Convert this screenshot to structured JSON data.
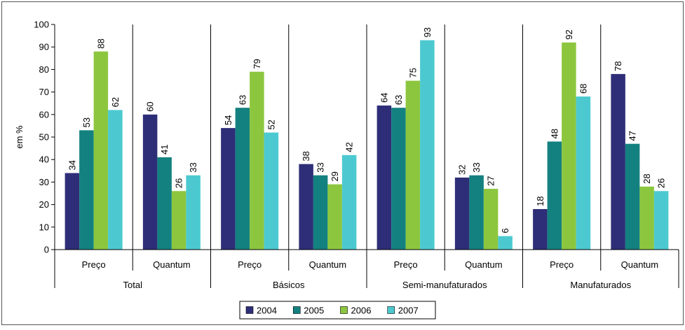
{
  "chart_data": {
    "type": "bar",
    "ylabel": "em %",
    "ylim": [
      0,
      100
    ],
    "yticks": [
      "0",
      "10",
      "20",
      "30",
      "40",
      "50",
      "60",
      "70",
      "80",
      "90",
      "100"
    ],
    "groups": [
      "Total",
      "Básicos",
      "Semi-manufaturados",
      "Manufaturados"
    ],
    "subcategories": [
      "Preço",
      "Quantum"
    ],
    "categories": [
      "Total - Preço",
      "Total - Quantum",
      "Básicos - Preço",
      "Básicos - Quantum",
      "Semi-manufaturados - Preço",
      "Semi-manufaturados - Quantum",
      "Manufaturados - Preço",
      "Manufaturados - Quantum"
    ],
    "series": [
      {
        "name": "2004",
        "color": "#2e2e78",
        "values": [
          34,
          60,
          54,
          38,
          64,
          32,
          18,
          78
        ]
      },
      {
        "name": "2005",
        "color": "#138180",
        "values": [
          53,
          41,
          63,
          33,
          63,
          33,
          48,
          47
        ]
      },
      {
        "name": "2006",
        "color": "#8cc63f",
        "values": [
          88,
          26,
          79,
          29,
          75,
          27,
          92,
          28
        ]
      },
      {
        "name": "2007",
        "color": "#4cc9d0",
        "values": [
          62,
          33,
          52,
          42,
          93,
          6,
          68,
          26
        ]
      }
    ],
    "grid": false,
    "legend_position": "bottom"
  }
}
